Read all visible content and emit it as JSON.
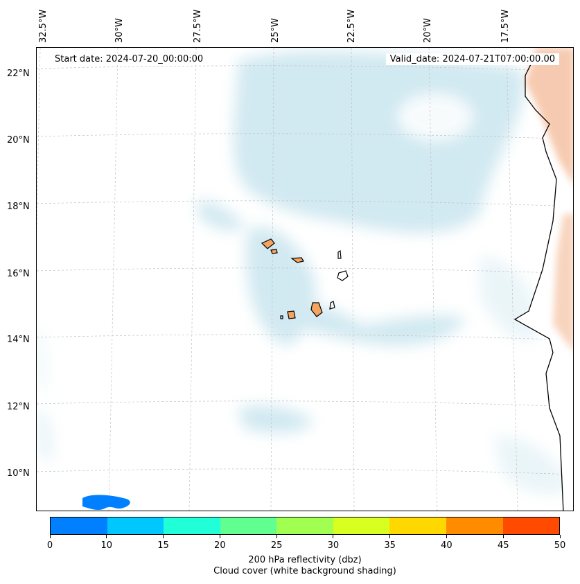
{
  "map": {
    "start_date": "Start date: 2024-07-20_00:00:00",
    "valid_date": "Valid_date: 2024-07-21T07:00:00.00",
    "longitude_labels": [
      "32.5°W",
      "30°W",
      "27.5°W",
      "25°W",
      "22.5°W",
      "20°W",
      "17.5°W"
    ],
    "latitude_labels": [
      "22°N",
      "20°N",
      "18°N",
      "16°N",
      "14°N",
      "12°N",
      "10°N"
    ],
    "colors": {
      "land_fill": "#f4a460",
      "cloud": "#add8e6",
      "reflectivity_orange": "#f0a070",
      "coastline": "#000000",
      "grid": "#b0b0b0"
    },
    "features": [
      "cape-verde-islands",
      "west-africa-coastline",
      "cloud-cover",
      "reflectivity-blob"
    ]
  },
  "colorbar": {
    "colors": [
      "#0080ff",
      "#00c8ff",
      "#20ffd8",
      "#60ff90",
      "#a0ff50",
      "#d8ff20",
      "#ffd800",
      "#ff8c00",
      "#ff4b00"
    ],
    "ticks": [
      "0",
      "10",
      "15",
      "20",
      "25",
      "30",
      "35",
      "40",
      "45",
      "50"
    ],
    "label_line1": "200 hPa reflectivity (dbz)",
    "label_line2": "Cloud cover (white background shading)"
  }
}
